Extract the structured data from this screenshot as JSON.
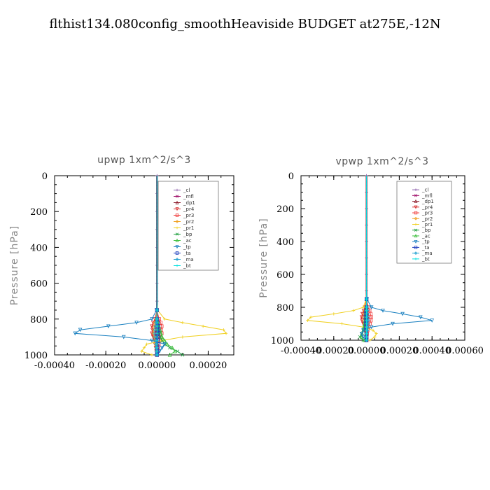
{
  "title": "flthist134.080config_smoothHeaviside  BUDGET at275E,-12N",
  "legend_entries": [
    "_cl",
    "_mfl",
    "_dp1",
    "_pr4",
    "_pr3",
    "_pr2",
    "_pr1",
    "_bp",
    "_ac",
    "_tp",
    "_ta",
    "_ma",
    "_bt"
  ],
  "colors": {
    "_cl": "#8a5aa8",
    "_mfl": "#a0106a",
    "_dp1": "#8b1a2a",
    "_pr4": "#d62828",
    "_pr3": "#f04040",
    "_pr2": "#f0a020",
    "_pr1": "#f0d020",
    "_bp": "#20a040",
    "_ac": "#40c040",
    "_tp": "#1a80c0",
    "_ta": "#2040c0",
    "_ma": "#20a0d0",
    "_bt": "#00e0e0"
  },
  "chart_data": [
    {
      "type": "line",
      "title": "upwp   1xm^2/s^3",
      "ylabel": "Pressure  [hPa]",
      "xlabel": "",
      "xlim": [
        -0.0004,
        0.0003
      ],
      "ylim": [
        1000,
        0
      ],
      "xticks": [
        -0.0004,
        -0.0002,
        0.0,
        0.0002
      ],
      "xtick_labels": [
        "-0.00040",
        "-0.00020",
        "0.00000",
        "0.00020"
      ],
      "yticks": [
        0,
        200,
        400,
        600,
        800,
        1000
      ],
      "ytick_labels": [
        "0",
        "200",
        "400",
        "600",
        "800",
        "1000"
      ],
      "legend": "top-right",
      "pressure": [
        0,
        100,
        200,
        300,
        400,
        500,
        600,
        700,
        750,
        800,
        820,
        840,
        860,
        880,
        900,
        920,
        940,
        960,
        980,
        1000
      ],
      "series": [
        {
          "name": "_cl",
          "values": [
            0,
            0,
            0,
            0,
            0,
            0,
            0,
            0,
            0,
            3e-06,
            5e-06,
            4e-06,
            6e-06,
            5e-06,
            4e-06,
            3e-06,
            2e-06,
            3e-06,
            2e-06,
            1e-06
          ]
        },
        {
          "name": "_mfl",
          "values": [
            0,
            0,
            0,
            0,
            0,
            0,
            0,
            0,
            0,
            0,
            -4e-06,
            -6e-06,
            -5e-06,
            -6e-06,
            -4e-06,
            -3e-06,
            -2e-06,
            -1e-06,
            -1e-06,
            0
          ]
        },
        {
          "name": "_dp1",
          "values": [
            0,
            0,
            0,
            0,
            0,
            0,
            0,
            0,
            0,
            0,
            2e-06,
            3e-06,
            2e-06,
            3e-06,
            2e-06,
            1e-06,
            1e-06,
            1e-06,
            0,
            0
          ]
        },
        {
          "name": "_pr4",
          "values": [
            0,
            0,
            0,
            0,
            0,
            0,
            0,
            0,
            0,
            -8e-06,
            -1.5e-05,
            -2e-05,
            -1.8e-05,
            -2e-05,
            -1.5e-05,
            -1e-05,
            -8e-06,
            -5e-06,
            -3e-06,
            0
          ]
        },
        {
          "name": "_pr3",
          "values": [
            0,
            0,
            0,
            0,
            0,
            0,
            0,
            0,
            0,
            8e-06,
            1.4e-05,
            1.8e-05,
            1.6e-05,
            1.8e-05,
            1.4e-05,
            1e-05,
            7e-06,
            4e-06,
            2e-06,
            0
          ]
        },
        {
          "name": "_pr2",
          "values": [
            0,
            0,
            0,
            0,
            0,
            0,
            0,
            0,
            0,
            -4e-06,
            -8e-06,
            -1e-05,
            -1.2e-05,
            -1.4e-05,
            -1e-05,
            -8e-06,
            -6e-06,
            -4e-06,
            -3e-06,
            0
          ]
        },
        {
          "name": "_pr1",
          "values": [
            0,
            0,
            0,
            0,
            0,
            0,
            0,
            0,
            2e-06,
            3e-05,
            0.0001,
            0.00018,
            0.00026,
            0.00027,
            0.0001,
            2e-05,
            -4e-05,
            -5e-05,
            -6e-05,
            -2e-05
          ]
        },
        {
          "name": "_bp",
          "values": [
            0,
            0,
            0,
            0,
            0,
            0,
            0,
            0,
            0,
            0,
            2e-06,
            4e-06,
            6e-06,
            8e-06,
            1.2e-05,
            2e-05,
            3e-05,
            5e-05,
            8e-05,
            0.0001
          ]
        },
        {
          "name": "_ac",
          "values": [
            0,
            0,
            0,
            0,
            0,
            0,
            0,
            0,
            0,
            0,
            4e-06,
            8e-06,
            1.2e-05,
            1.6e-05,
            2e-05,
            3e-05,
            4e-05,
            6e-05,
            7e-05,
            5e-05
          ]
        },
        {
          "name": "_tp",
          "values": [
            0,
            0,
            0,
            0,
            0,
            0,
            0,
            0,
            -2e-06,
            -2e-05,
            -8e-05,
            -0.00019,
            -0.0003,
            -0.00032,
            -0.00013,
            -2e-05,
            3e-05,
            2e-05,
            1e-05,
            0
          ]
        },
        {
          "name": "_ta",
          "values": [
            0,
            0,
            0,
            0,
            0,
            0,
            0,
            0,
            0,
            0,
            3e-06,
            5e-06,
            6e-06,
            5e-06,
            4e-06,
            3e-06,
            2e-06,
            1e-06,
            0,
            0
          ]
        },
        {
          "name": "_ma",
          "values": [
            0,
            0,
            0,
            0,
            0,
            0,
            0,
            0,
            0,
            -2e-06,
            -4e-06,
            -6e-06,
            -8e-06,
            -1e-05,
            -8e-06,
            -6e-06,
            -4e-06,
            -3e-06,
            -2e-06,
            0
          ]
        },
        {
          "name": "_bt",
          "values": [
            0,
            0,
            0,
            0,
            0,
            0,
            0,
            0,
            0,
            0,
            0,
            0,
            0,
            0,
            0,
            0,
            0,
            0,
            0,
            0
          ]
        }
      ]
    },
    {
      "type": "line",
      "title": "vpwp   1xm^2/s^3",
      "ylabel": "Pressure  [hPa]",
      "xlabel": "",
      "xlim": [
        -0.0004,
        0.0006
      ],
      "ylim": [
        1000,
        0
      ],
      "xticks": [
        -0.0004,
        -0.0002,
        0.0,
        0.0002,
        0.0004,
        0.0006
      ],
      "xtick_labels": [
        "-0.00040",
        "-0.00020",
        "0.00000",
        "0.00020",
        "0.00040",
        "0.00060"
      ],
      "yticks": [
        0,
        200,
        400,
        600,
        800,
        1000
      ],
      "ytick_labels": [
        "0",
        "200",
        "400",
        "600",
        "800",
        "1000"
      ],
      "legend": "top-right",
      "pressure": [
        0,
        100,
        200,
        300,
        400,
        500,
        600,
        700,
        750,
        800,
        820,
        840,
        860,
        880,
        900,
        920,
        940,
        960,
        980,
        1000
      ],
      "series": [
        {
          "name": "_cl",
          "values": [
            0,
            0,
            0,
            0,
            0,
            0,
            0,
            0,
            0,
            3e-06,
            5e-06,
            6e-06,
            5e-06,
            6e-06,
            5e-06,
            4e-06,
            3e-06,
            2e-06,
            1e-06,
            0
          ]
        },
        {
          "name": "_mfl",
          "values": [
            0,
            0,
            0,
            0,
            0,
            0,
            0,
            0,
            0,
            -4e-06,
            -8e-06,
            -1e-05,
            -1.2e-05,
            -1e-05,
            -8e-06,
            -6e-06,
            -4e-06,
            -2e-06,
            -1e-06,
            0
          ]
        },
        {
          "name": "_dp1",
          "values": [
            0,
            0,
            0,
            0,
            0,
            0,
            0,
            0,
            0,
            2e-06,
            4e-06,
            5e-06,
            6e-06,
            5e-06,
            4e-06,
            3e-06,
            2e-06,
            1e-06,
            0,
            0
          ]
        },
        {
          "name": "_pr4",
          "values": [
            0,
            0,
            0,
            0,
            0,
            0,
            0,
            0,
            0,
            -1e-05,
            -1.8e-05,
            -2.5e-05,
            -3e-05,
            -2.8e-05,
            -2e-05,
            -1.2e-05,
            -6e-06,
            -3e-06,
            -1e-06,
            0
          ]
        },
        {
          "name": "_pr3",
          "values": [
            0,
            0,
            0,
            0,
            0,
            0,
            0,
            0,
            0,
            1e-05,
            1.8e-05,
            2.4e-05,
            2.8e-05,
            2.6e-05,
            2e-05,
            1.2e-05,
            6e-06,
            3e-06,
            1e-06,
            0
          ]
        },
        {
          "name": "_pr2",
          "values": [
            0,
            0,
            0,
            0,
            0,
            0,
            0,
            0,
            0,
            -6e-06,
            -1e-05,
            -1.4e-05,
            -1.6e-05,
            -1.4e-05,
            -1e-05,
            -6e-06,
            -3e-06,
            -2e-06,
            -1e-06,
            0
          ]
        },
        {
          "name": "_pr1",
          "values": [
            0,
            0,
            0,
            0,
            0,
            0,
            0,
            0,
            -2e-06,
            -2e-05,
            -8e-05,
            -0.0002,
            -0.00034,
            -0.00036,
            -0.00015,
            -2e-05,
            4e-05,
            6e-05,
            5e-05,
            2e-05
          ]
        },
        {
          "name": "_bp",
          "values": [
            0,
            0,
            0,
            0,
            0,
            0,
            0,
            0,
            0,
            0,
            0,
            -2e-06,
            -4e-06,
            -6e-06,
            -1e-05,
            -1.4e-05,
            -2e-05,
            -3e-05,
            -4e-05,
            -2e-05
          ]
        },
        {
          "name": "_ac",
          "values": [
            0,
            0,
            0,
            0,
            0,
            0,
            0,
            0,
            0,
            0,
            -2e-06,
            -4e-06,
            -6e-06,
            -8e-06,
            -1.2e-05,
            -1.6e-05,
            -2e-05,
            -2.6e-05,
            -3e-05,
            -1e-05
          ]
        },
        {
          "name": "_tp",
          "values": [
            0,
            0,
            0,
            0,
            0,
            0,
            0,
            0,
            3e-06,
            3e-05,
            0.0001,
            0.00022,
            0.00033,
            0.0004,
            0.00016,
            3e-05,
            -2e-05,
            -3e-05,
            -2e-05,
            0
          ]
        },
        {
          "name": "_ta",
          "values": [
            0,
            0,
            0,
            0,
            0,
            0,
            0,
            0,
            0,
            0,
            -3e-06,
            -5e-06,
            -6e-06,
            -5e-06,
            -4e-06,
            -3e-06,
            -2e-06,
            -1e-06,
            0,
            0
          ]
        },
        {
          "name": "_ma",
          "values": [
            0,
            0,
            0,
            0,
            0,
            0,
            0,
            0,
            0,
            2e-06,
            4e-06,
            6e-06,
            8e-06,
            1e-05,
            8e-06,
            6e-06,
            4e-06,
            2e-06,
            1e-06,
            0
          ]
        },
        {
          "name": "_bt",
          "values": [
            0,
            0,
            0,
            0,
            0,
            0,
            0,
            0,
            0,
            0,
            0,
            0,
            0,
            0,
            0,
            0,
            0,
            0,
            0,
            0
          ]
        }
      ]
    }
  ]
}
